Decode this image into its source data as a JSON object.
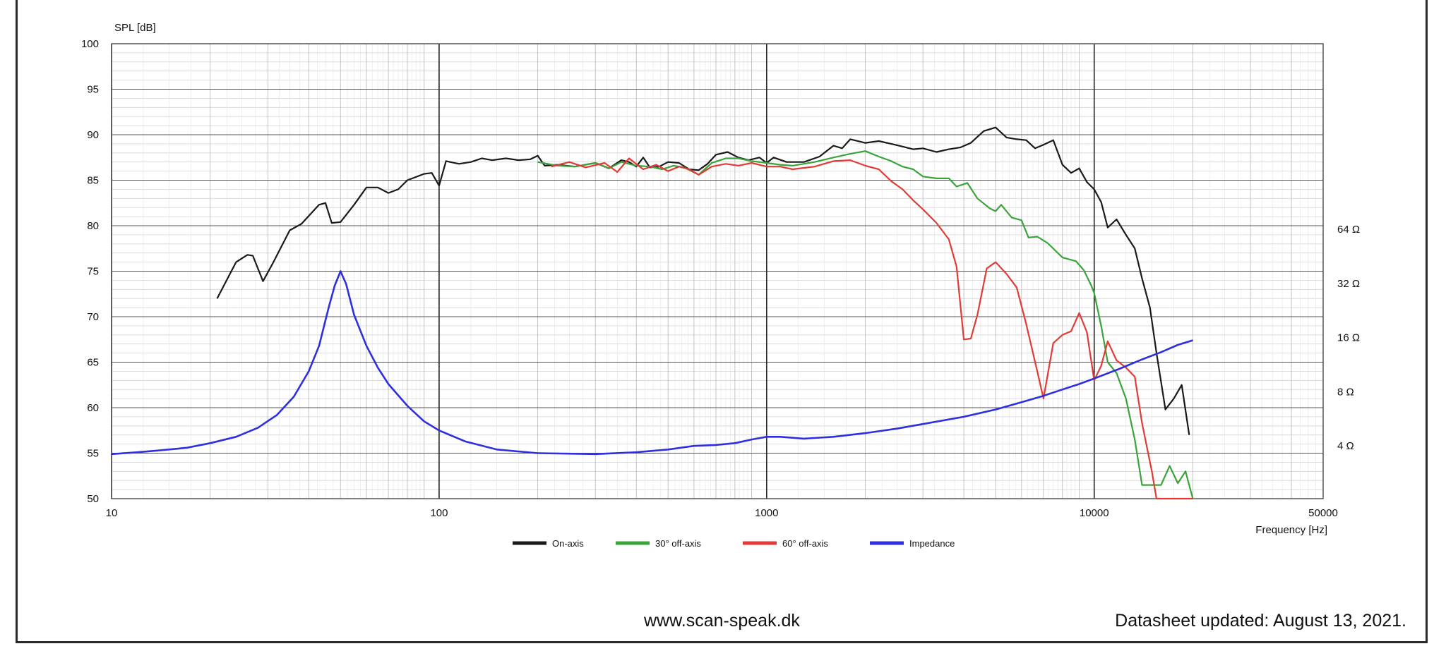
{
  "chart_data": {
    "type": "line",
    "ylabel": "SPL [dB]",
    "xlabel": "Frequency [Hz]",
    "x_scale": "log",
    "xlim": [
      10,
      50000
    ],
    "ylim": [
      50,
      100
    ],
    "y_ticks": [
      "50",
      "55",
      "60",
      "65",
      "70",
      "75",
      "80",
      "85",
      "90",
      "95",
      "100"
    ],
    "x_ticks": [
      {
        "value": 10,
        "label": "10"
      },
      {
        "value": 100,
        "label": "100"
      },
      {
        "value": 1000,
        "label": "1000"
      },
      {
        "value": 10000,
        "label": "10000"
      },
      {
        "value": 50000,
        "label": "50000"
      }
    ],
    "right_axis": {
      "ticks": [
        {
          "value": 4,
          "label": "4 Ω"
        },
        {
          "value": 8,
          "label": "8 Ω"
        },
        {
          "value": 16,
          "label": "16 Ω"
        },
        {
          "value": 32,
          "label": "32 Ω"
        },
        {
          "value": 64,
          "label": "64 Ω"
        }
      ]
    },
    "grid": true,
    "legend_position": "bottom-center",
    "series": [
      {
        "name": "On-axis",
        "color": "#1a1a1a",
        "axis": "left",
        "points": [
          [
            21,
            72
          ],
          [
            24,
            76
          ],
          [
            26,
            76.8
          ],
          [
            27,
            76.7
          ],
          [
            29,
            73.9
          ],
          [
            31,
            75.8
          ],
          [
            35,
            79.5
          ],
          [
            38,
            80.2
          ],
          [
            43,
            82.3
          ],
          [
            45,
            82.5
          ],
          [
            47,
            80.3
          ],
          [
            50,
            80.4
          ],
          [
            55,
            82.3
          ],
          [
            60,
            84.2
          ],
          [
            65,
            84.2
          ],
          [
            70,
            83.6
          ],
          [
            75,
            84
          ],
          [
            80,
            85
          ],
          [
            90,
            85.7
          ],
          [
            95,
            85.8
          ],
          [
            100,
            84.4
          ],
          [
            105,
            87.1
          ],
          [
            115,
            86.8
          ],
          [
            125,
            87
          ],
          [
            135,
            87.4
          ],
          [
            145,
            87.2
          ],
          [
            160,
            87.4
          ],
          [
            175,
            87.2
          ],
          [
            190,
            87.3
          ],
          [
            200,
            87.7
          ],
          [
            210,
            86.6
          ],
          [
            230,
            86.7
          ],
          [
            260,
            86.5
          ],
          [
            300,
            86.9
          ],
          [
            330,
            86.3
          ],
          [
            360,
            87.2
          ],
          [
            380,
            87
          ],
          [
            400,
            86.5
          ],
          [
            420,
            87.5
          ],
          [
            440,
            86.4
          ],
          [
            470,
            86.5
          ],
          [
            500,
            87
          ],
          [
            540,
            86.9
          ],
          [
            580,
            86.2
          ],
          [
            620,
            86.1
          ],
          [
            660,
            86.8
          ],
          [
            700,
            87.8
          ],
          [
            760,
            88.1
          ],
          [
            820,
            87.5
          ],
          [
            880,
            87.2
          ],
          [
            950,
            87.5
          ],
          [
            1000,
            86.9
          ],
          [
            1050,
            87.5
          ],
          [
            1150,
            87
          ],
          [
            1300,
            87
          ],
          [
            1450,
            87.6
          ],
          [
            1600,
            88.8
          ],
          [
            1700,
            88.5
          ],
          [
            1800,
            89.5
          ],
          [
            2000,
            89.1
          ],
          [
            2200,
            89.3
          ],
          [
            2400,
            89
          ],
          [
            2600,
            88.7
          ],
          [
            2800,
            88.4
          ],
          [
            3000,
            88.5
          ],
          [
            3300,
            88.1
          ],
          [
            3600,
            88.4
          ],
          [
            3900,
            88.6
          ],
          [
            4200,
            89.1
          ],
          [
            4600,
            90.4
          ],
          [
            5000,
            90.8
          ],
          [
            5400,
            89.7
          ],
          [
            5800,
            89.5
          ],
          [
            6200,
            89.4
          ],
          [
            6600,
            88.5
          ],
          [
            7000,
            88.9
          ],
          [
            7500,
            89.4
          ],
          [
            8000,
            86.7
          ],
          [
            8500,
            85.8
          ],
          [
            9000,
            86.3
          ],
          [
            9500,
            84.8
          ],
          [
            10000,
            84
          ],
          [
            10500,
            82.6
          ],
          [
            11000,
            79.8
          ],
          [
            11700,
            80.7
          ],
          [
            12500,
            79
          ],
          [
            13300,
            77.5
          ],
          [
            14000,
            74.2
          ],
          [
            14800,
            71
          ],
          [
            15500,
            66
          ],
          [
            16500,
            59.8
          ],
          [
            17500,
            61
          ],
          [
            18500,
            62.5
          ],
          [
            19500,
            57
          ]
        ]
      },
      {
        "name": "30° off-axis",
        "color": "#3aa33a",
        "axis": "left",
        "points": [
          [
            200,
            87
          ],
          [
            230,
            86.6
          ],
          [
            260,
            86.5
          ],
          [
            300,
            86.9
          ],
          [
            330,
            86.3
          ],
          [
            360,
            87
          ],
          [
            400,
            86.6
          ],
          [
            440,
            86.5
          ],
          [
            480,
            86.2
          ],
          [
            520,
            86.6
          ],
          [
            560,
            86.4
          ],
          [
            620,
            85.6
          ],
          [
            680,
            86.9
          ],
          [
            750,
            87.4
          ],
          [
            820,
            87.4
          ],
          [
            900,
            87.1
          ],
          [
            1000,
            86.9
          ],
          [
            1100,
            86.7
          ],
          [
            1200,
            86.6
          ],
          [
            1400,
            87
          ],
          [
            1600,
            87.5
          ],
          [
            1800,
            87.9
          ],
          [
            2000,
            88.2
          ],
          [
            2200,
            87.6
          ],
          [
            2400,
            87.1
          ],
          [
            2600,
            86.5
          ],
          [
            2800,
            86.2
          ],
          [
            3000,
            85.4
          ],
          [
            3300,
            85.2
          ],
          [
            3600,
            85.2
          ],
          [
            3800,
            84.3
          ],
          [
            4100,
            84.7
          ],
          [
            4400,
            83
          ],
          [
            4800,
            81.9
          ],
          [
            5000,
            81.6
          ],
          [
            5200,
            82.3
          ],
          [
            5600,
            80.9
          ],
          [
            6000,
            80.6
          ],
          [
            6300,
            78.7
          ],
          [
            6700,
            78.8
          ],
          [
            7200,
            78.1
          ],
          [
            8000,
            76.5
          ],
          [
            8800,
            76.1
          ],
          [
            9300,
            75.1
          ],
          [
            9800,
            73.4
          ],
          [
            10000,
            72.6
          ],
          [
            10500,
            69
          ],
          [
            11000,
            65
          ],
          [
            11700,
            63.8
          ],
          [
            12500,
            61
          ],
          [
            13300,
            56.5
          ],
          [
            14000,
            51.5
          ],
          [
            15000,
            51.5
          ],
          [
            16000,
            51.5
          ],
          [
            17000,
            53.6
          ],
          [
            18000,
            51.7
          ],
          [
            19000,
            53
          ],
          [
            20000,
            50
          ]
        ]
      },
      {
        "name": "60° off-axis",
        "color": "#e23b35",
        "axis": "left",
        "points": [
          [
            220,
            86.5
          ],
          [
            250,
            87
          ],
          [
            280,
            86.4
          ],
          [
            320,
            86.9
          ],
          [
            350,
            85.9
          ],
          [
            380,
            87.4
          ],
          [
            420,
            86.2
          ],
          [
            460,
            86.7
          ],
          [
            500,
            86
          ],
          [
            540,
            86.5
          ],
          [
            580,
            86.2
          ],
          [
            620,
            85.6
          ],
          [
            680,
            86.5
          ],
          [
            750,
            86.8
          ],
          [
            820,
            86.6
          ],
          [
            900,
            86.9
          ],
          [
            1000,
            86.5
          ],
          [
            1100,
            86.5
          ],
          [
            1200,
            86.2
          ],
          [
            1400,
            86.5
          ],
          [
            1600,
            87.1
          ],
          [
            1800,
            87.2
          ],
          [
            2000,
            86.6
          ],
          [
            2200,
            86.2
          ],
          [
            2400,
            84.9
          ],
          [
            2600,
            84
          ],
          [
            2800,
            82.8
          ],
          [
            3000,
            81.8
          ],
          [
            3300,
            80.3
          ],
          [
            3600,
            78.5
          ],
          [
            3800,
            75.5
          ],
          [
            4000,
            67.5
          ],
          [
            4200,
            67.6
          ],
          [
            4400,
            70.2
          ],
          [
            4700,
            75.3
          ],
          [
            5000,
            76
          ],
          [
            5400,
            74.7
          ],
          [
            5800,
            73.2
          ],
          [
            6200,
            69.2
          ],
          [
            6700,
            64
          ],
          [
            7000,
            61
          ],
          [
            7500,
            67.1
          ],
          [
            8000,
            68
          ],
          [
            8500,
            68.4
          ],
          [
            9000,
            70.4
          ],
          [
            9500,
            68.3
          ],
          [
            10000,
            63
          ],
          [
            10500,
            64.6
          ],
          [
            11000,
            67.3
          ],
          [
            11700,
            65.2
          ],
          [
            12500,
            64.4
          ],
          [
            13300,
            63.4
          ],
          [
            14000,
            58.3
          ],
          [
            15000,
            53
          ],
          [
            15500,
            50
          ],
          [
            17000,
            50
          ],
          [
            18500,
            50
          ],
          [
            20000,
            50
          ]
        ]
      },
      {
        "name": "Impedance",
        "color": "#2f2fe0",
        "axis": "right",
        "points": [
          [
            10,
            54.9
          ],
          [
            12,
            55.1
          ],
          [
            14,
            55.3
          ],
          [
            17,
            55.6
          ],
          [
            20,
            56.1
          ],
          [
            24,
            56.8
          ],
          [
            28,
            57.8
          ],
          [
            32,
            59.2
          ],
          [
            36,
            61.2
          ],
          [
            40,
            64
          ],
          [
            43,
            66.8
          ],
          [
            46,
            71
          ],
          [
            48,
            73.4
          ],
          [
            50,
            75
          ],
          [
            52,
            73.6
          ],
          [
            55,
            70.2
          ],
          [
            60,
            66.8
          ],
          [
            65,
            64.4
          ],
          [
            70,
            62.6
          ],
          [
            80,
            60.2
          ],
          [
            90,
            58.5
          ],
          [
            100,
            57.5
          ],
          [
            120,
            56.3
          ],
          [
            150,
            55.4
          ],
          [
            200,
            55
          ],
          [
            300,
            54.9
          ],
          [
            400,
            55.1
          ],
          [
            500,
            55.4
          ],
          [
            600,
            55.8
          ],
          [
            700,
            55.9
          ],
          [
            800,
            56.1
          ],
          [
            900,
            56.5
          ],
          [
            1000,
            56.8
          ],
          [
            1100,
            56.8
          ],
          [
            1300,
            56.6
          ],
          [
            1600,
            56.8
          ],
          [
            2000,
            57.2
          ],
          [
            2500,
            57.7
          ],
          [
            3000,
            58.2
          ],
          [
            4000,
            59
          ],
          [
            5000,
            59.8
          ],
          [
            6000,
            60.6
          ],
          [
            7000,
            61.3
          ],
          [
            8000,
            62
          ],
          [
            9000,
            62.6
          ],
          [
            10000,
            63.2
          ],
          [
            12000,
            64.3
          ],
          [
            14000,
            65.3
          ],
          [
            16000,
            66.1
          ],
          [
            18000,
            66.9
          ],
          [
            20000,
            67.4
          ]
        ]
      }
    ]
  },
  "footer": {
    "url": "www.scan-speak.dk",
    "updated": "Datasheet updated: August 13, 2021."
  }
}
